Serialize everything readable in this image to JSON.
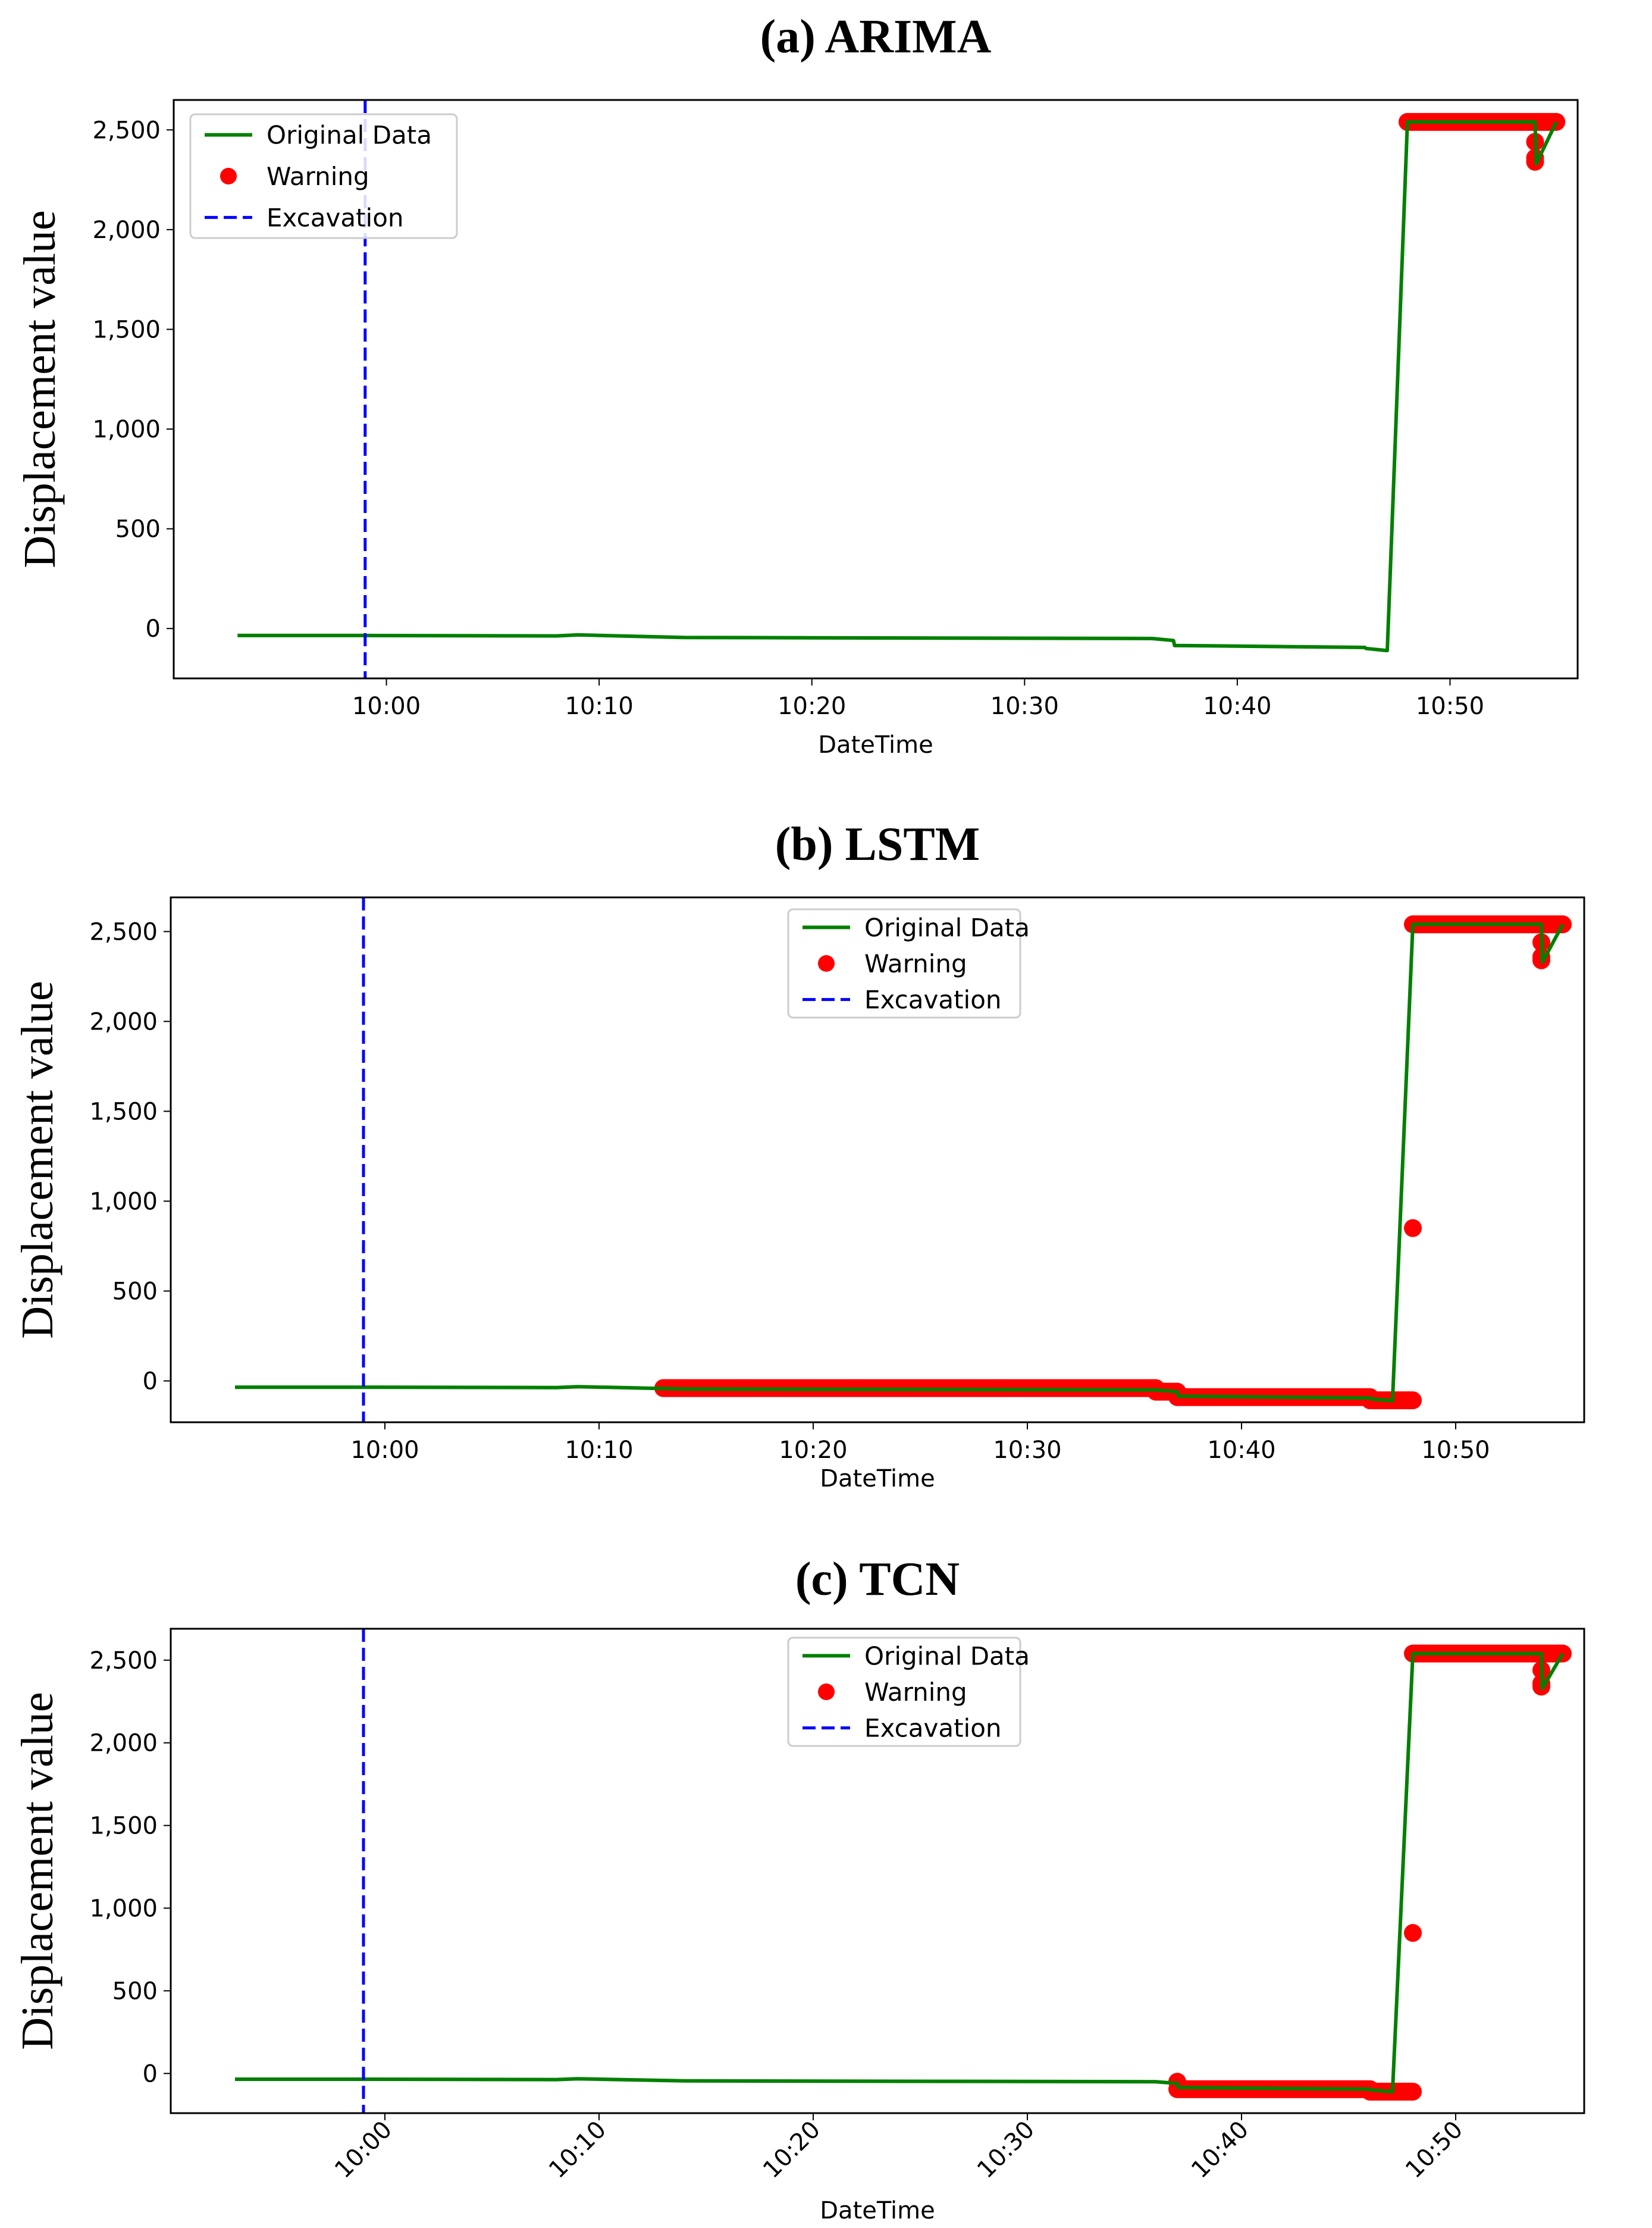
{
  "colors": {
    "original": "#008000",
    "warning": "#ff0000",
    "excavation": "#0000ff"
  },
  "chart_data": [
    {
      "type": "line",
      "title": "(a) ARIMA",
      "xlabel": "DateTime",
      "ylabel": "Displacement  value",
      "x_tick_labels": [
        "10:00",
        "10:10",
        "10:20",
        "10:30",
        "10:40",
        "10:50"
      ],
      "y_tick_labels": [
        "0",
        "500",
        "1,000",
        "1,500",
        "2,000",
        "2,500"
      ],
      "y_ticks": [
        0,
        500,
        1000,
        1500,
        2000,
        2500
      ],
      "xlim": [
        "09:50",
        "10:56"
      ],
      "ylim": [
        -250,
        2650
      ],
      "legend": {
        "position": "top-left",
        "entries": [
          "Original Data",
          "Warning",
          "Excavation"
        ]
      },
      "excavation_time": "09:59",
      "series": [
        {
          "name": "Original Data",
          "points": [
            [
              "09:53",
              -35
            ],
            [
              "09:59",
              -35
            ],
            [
              "10:08",
              -37
            ],
            [
              "10:09",
              -32
            ],
            [
              "10:14",
              -45
            ],
            [
              "10:36",
              -50
            ],
            [
              "10:37",
              -60
            ],
            [
              "10:37",
              -85
            ],
            [
              "10:46",
              -95
            ],
            [
              "10:46",
              -100
            ],
            [
              "10:47",
              -110
            ],
            [
              "10:47",
              -110
            ],
            [
              "10:48",
              2540
            ],
            [
              "10:54",
              2540
            ],
            [
              "10:54",
              2330
            ],
            [
              "10:55",
              2540
            ]
          ]
        },
        {
          "name": "Warning",
          "segments": [
            [
              "10:48",
              "10:55",
              2540
            ]
          ],
          "points": [
            [
              "10:54",
              2340
            ],
            [
              "10:54",
              2360
            ],
            [
              "10:54",
              2440
            ]
          ]
        }
      ]
    },
    {
      "type": "line",
      "title": "(b) LSTM",
      "xlabel": "DateTime",
      "ylabel": "Displacement  value",
      "x_tick_labels": [
        "10:00",
        "10:10",
        "10:20",
        "10:30",
        "10:40",
        "10:50"
      ],
      "y_tick_labels": [
        "0",
        "500",
        "1,000",
        "1,500",
        "2,000",
        "2,500"
      ],
      "y_ticks": [
        0,
        500,
        1000,
        1500,
        2000,
        2500
      ],
      "xlim": [
        "09:50",
        "10:56"
      ],
      "ylim": [
        -230,
        2690
      ],
      "legend": {
        "position": "upper-center",
        "entries": [
          "Original Data",
          "Warning",
          "Excavation"
        ]
      },
      "excavation_time": "09:59",
      "series": [
        {
          "name": "Original Data",
          "points": [
            [
              "09:53",
              -35
            ],
            [
              "09:59",
              -35
            ],
            [
              "10:08",
              -37
            ],
            [
              "10:09",
              -32
            ],
            [
              "10:14",
              -45
            ],
            [
              "10:36",
              -50
            ],
            [
              "10:37",
              -60
            ],
            [
              "10:37",
              -85
            ],
            [
              "10:46",
              -95
            ],
            [
              "10:46",
              -100
            ],
            [
              "10:47",
              -110
            ],
            [
              "10:47",
              -110
            ],
            [
              "10:48",
              2540
            ],
            [
              "10:54",
              2540
            ],
            [
              "10:54",
              2330
            ],
            [
              "10:55",
              2540
            ]
          ]
        },
        {
          "name": "Warning",
          "segments": [
            [
              "10:13",
              "10:36",
              -40
            ],
            [
              "10:36",
              "10:37",
              -60
            ],
            [
              "10:37",
              "10:46",
              -90
            ],
            [
              "10:46",
              "10:48",
              -108
            ],
            [
              "10:48",
              "10:55",
              2540
            ]
          ],
          "points": [
            [
              "10:48",
              850
            ],
            [
              "10:54",
              2340
            ],
            [
              "10:54",
              2360
            ],
            [
              "10:54",
              2440
            ]
          ]
        }
      ]
    },
    {
      "type": "line",
      "title": "(c) TCN",
      "xlabel": "DateTime",
      "ylabel": "Displacement  value",
      "x_tick_labels": [
        "10:00",
        "10:10",
        "10:20",
        "10:30",
        "10:40",
        "10:50"
      ],
      "y_tick_labels": [
        "0",
        "500",
        "1,000",
        "1,500",
        "2,000",
        "2,500"
      ],
      "y_ticks": [
        0,
        500,
        1000,
        1500,
        2000,
        2500
      ],
      "xlim": [
        "09:50",
        "10:56"
      ],
      "ylim": [
        -240,
        2690
      ],
      "x_tick_rotation": 45,
      "legend": {
        "position": "upper-center",
        "entries": [
          "Original Data",
          "Warning",
          "Excavation"
        ]
      },
      "excavation_time": "09:59",
      "series": [
        {
          "name": "Original Data",
          "points": [
            [
              "09:53",
              -35
            ],
            [
              "09:59",
              -35
            ],
            [
              "10:08",
              -37
            ],
            [
              "10:09",
              -32
            ],
            [
              "10:14",
              -45
            ],
            [
              "10:36",
              -50
            ],
            [
              "10:37",
              -60
            ],
            [
              "10:37",
              -85
            ],
            [
              "10:46",
              -95
            ],
            [
              "10:46",
              -100
            ],
            [
              "10:47",
              -110
            ],
            [
              "10:47",
              -110
            ],
            [
              "10:48",
              2540
            ],
            [
              "10:54",
              2540
            ],
            [
              "10:54",
              2330
            ],
            [
              "10:55",
              2540
            ]
          ]
        },
        {
          "name": "Warning",
          "segments": [
            [
              "10:37",
              "10:46",
              -95
            ],
            [
              "10:46",
              "10:48",
              -110
            ],
            [
              "10:48",
              "10:55",
              2540
            ]
          ],
          "points": [
            [
              "10:37",
              -50
            ],
            [
              "10:48",
              850
            ],
            [
              "10:54",
              2340
            ],
            [
              "10:54",
              2360
            ],
            [
              "10:54",
              2440
            ]
          ]
        }
      ]
    }
  ]
}
